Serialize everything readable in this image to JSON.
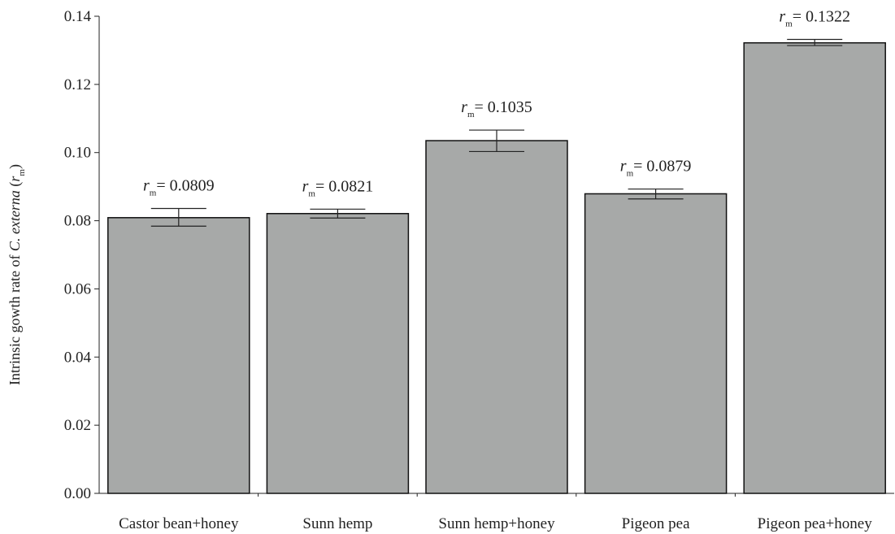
{
  "chart_data": {
    "type": "bar",
    "categories": [
      "Castor bean+honey",
      "Sunn hemp",
      "Sunn hemp+honey",
      "Pigeon pea",
      "Pigeon pea+honey"
    ],
    "values": [
      0.0809,
      0.0821,
      0.1035,
      0.0879,
      0.1322
    ],
    "error_low": [
      0.0784,
      0.0808,
      0.1003,
      0.0864,
      0.1314
    ],
    "error_high": [
      0.0836,
      0.0834,
      0.1066,
      0.0893,
      0.1332
    ],
    "data_labels": {
      "prefix_italic": "r",
      "prefix_sub": "m",
      "values": [
        "= 0.0809",
        "= 0.0821",
        "= 0.1035",
        "= 0.0879",
        "= 0.1322"
      ]
    },
    "ylabel": {
      "before": "Intrinsic gowth rate of ",
      "italic": "C. externa",
      "open": " (",
      "var_italic": "r",
      "var_sub": "m",
      "close": ")"
    },
    "yticks": [
      "0.00",
      "0.02",
      "0.04",
      "0.06",
      "0.08",
      "0.10",
      "0.12",
      "0.14"
    ],
    "ylim": [
      0,
      0.14
    ],
    "grid": false,
    "bar_color": "#a7a9a8",
    "edge_color": "#111111"
  }
}
